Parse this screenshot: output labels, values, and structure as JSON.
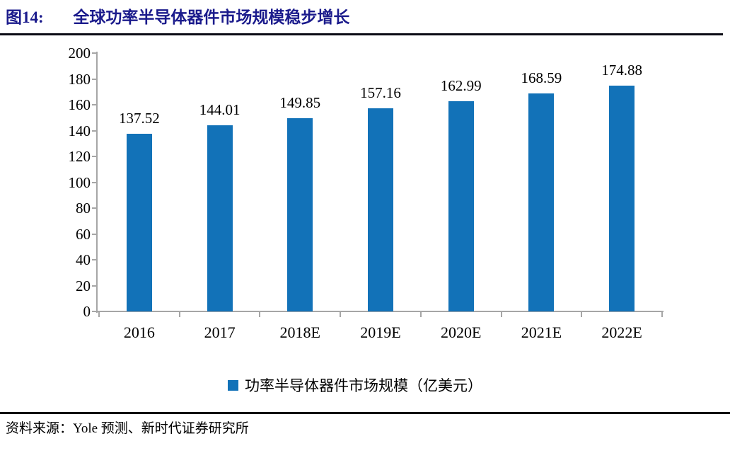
{
  "figure": {
    "label": "图14:",
    "title": "全球功率半导体器件市场规模稳步增长",
    "source": "资料来源：Yole 预测、新时代证券研究所"
  },
  "chart_data": {
    "type": "bar",
    "title": "全球功率半导体器件市场规模稳步增长",
    "categories": [
      "2016",
      "2017",
      "2018E",
      "2019E",
      "2020E",
      "2021E",
      "2022E"
    ],
    "values": [
      137.52,
      144.01,
      149.85,
      157.16,
      162.99,
      168.59,
      174.88
    ],
    "series_name": "功率半导体器件市场规模（亿美元）",
    "xlabel": "",
    "ylabel": "",
    "ylim": [
      0,
      200
    ],
    "ytick_step": 20,
    "grid": false,
    "data_labels": true,
    "legend_position": "bottom",
    "bar_color": "#1272b8",
    "axis_color": "#a6a6a6",
    "label_decimals": 2
  },
  "colors": {
    "title_navy": "#1b1b8c",
    "bar_blue": "#1272b8",
    "axis_gray": "#a6a6a6",
    "rule_black": "#0a0a14",
    "text_black": "#000000"
  }
}
